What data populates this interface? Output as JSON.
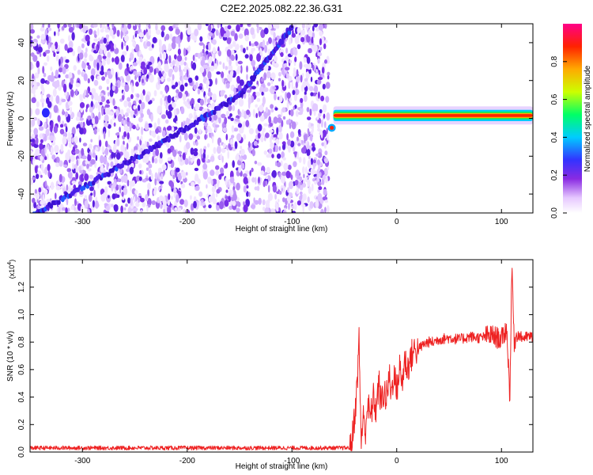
{
  "page_title": "C2E2.2025.082.22.36.G31",
  "chart_data": [
    {
      "type": "heatmap",
      "title": "C2E2.2025.082.22.36.G31",
      "xlabel": "Height of straight line (km)",
      "ylabel": "Frequency (Hz)",
      "xlim": [
        -350,
        130
      ],
      "ylim": [
        -50,
        50
      ],
      "xticks": [
        -300,
        -200,
        -100,
        0,
        100
      ],
      "xtick_labels": [
        "-300",
        "-200",
        "-100",
        "0",
        "100"
      ],
      "yticks": [
        -40,
        -20,
        0,
        20,
        40
      ],
      "ytick_labels": [
        "-40",
        "-20",
        "0",
        "20",
        "40"
      ],
      "grid": false,
      "colorbar": {
        "label": "Normalized spectral amplitude",
        "range": [
          0,
          1
        ],
        "ticks": [
          0.0,
          0.2,
          0.4,
          0.6,
          0.8
        ],
        "tick_labels": [
          "0.0",
          "0.2",
          "0.4",
          "0.6",
          "0.8"
        ],
        "colormap": [
          "#ffffff",
          "#e6c8ff",
          "#8a2be2",
          "#3333ff",
          "#00ccff",
          "#00ff66",
          "#ccff00",
          "#ffaa00",
          "#ff2200",
          "#ff0088"
        ]
      },
      "features": {
        "noise_region_x": [
          -350,
          -65
        ],
        "diagonal_trace": {
          "x": [
            -350,
            -240,
            -150,
            -100
          ],
          "y": [
            -52,
            -18,
            12,
            48
          ]
        },
        "bright_spot": {
          "x": -335,
          "y": 3
        },
        "signal_band": {
          "x": [
            -65,
            130
          ],
          "y": 1.5,
          "halfwidth_hz": 3
        }
      }
    },
    {
      "type": "line",
      "xlabel": "Height of straight line (km)",
      "ylabel": "SNR (10 * v/v)",
      "y_scale_label": "(x10",
      "y_scale_exponent": "4",
      "y_scale_suffix": ")",
      "xlim": [
        -350,
        130
      ],
      "ylim": [
        0,
        1.4
      ],
      "xticks": [
        -300,
        -200,
        -100,
        0,
        100
      ],
      "xtick_labels": [
        "-300",
        "-200",
        "-100",
        "0",
        "100"
      ],
      "yticks": [
        0.0,
        0.2,
        0.4,
        0.6,
        0.8,
        1.0,
        1.2
      ],
      "ytick_labels": [
        "0.0",
        "0.2",
        "0.4",
        "0.6",
        "0.8",
        "1.0",
        "1.2"
      ],
      "grid": false,
      "series": [
        {
          "color": "#ee2222",
          "x": [
            -350,
            -300,
            -250,
            -200,
            -150,
            -100,
            -60,
            -45,
            -42,
            -38,
            -36,
            -34,
            -32,
            -30,
            -28,
            -25,
            -22,
            -20,
            -17,
            -15,
            -12,
            -10,
            -7,
            -5,
            -3,
            0,
            3,
            5,
            8,
            10,
            12,
            15,
            18,
            20,
            25,
            30,
            35,
            40,
            50,
            60,
            70,
            80,
            90,
            100,
            105,
            108,
            110,
            112,
            115,
            120,
            125,
            130
          ],
          "y": [
            0.03,
            0.03,
            0.03,
            0.03,
            0.03,
            0.03,
            0.03,
            0.03,
            0.12,
            0.45,
            0.83,
            0.08,
            0.25,
            0.15,
            0.35,
            0.25,
            0.4,
            0.3,
            0.5,
            0.35,
            0.45,
            0.38,
            0.55,
            0.42,
            0.58,
            0.45,
            0.62,
            0.5,
            0.68,
            0.6,
            0.65,
            0.72,
            0.75,
            0.74,
            0.78,
            0.8,
            0.8,
            0.82,
            0.83,
            0.82,
            0.84,
            0.83,
            0.85,
            0.82,
            0.9,
            0.4,
            1.38,
            0.8,
            0.86,
            0.83,
            0.84,
            0.84
          ]
        }
      ]
    }
  ]
}
